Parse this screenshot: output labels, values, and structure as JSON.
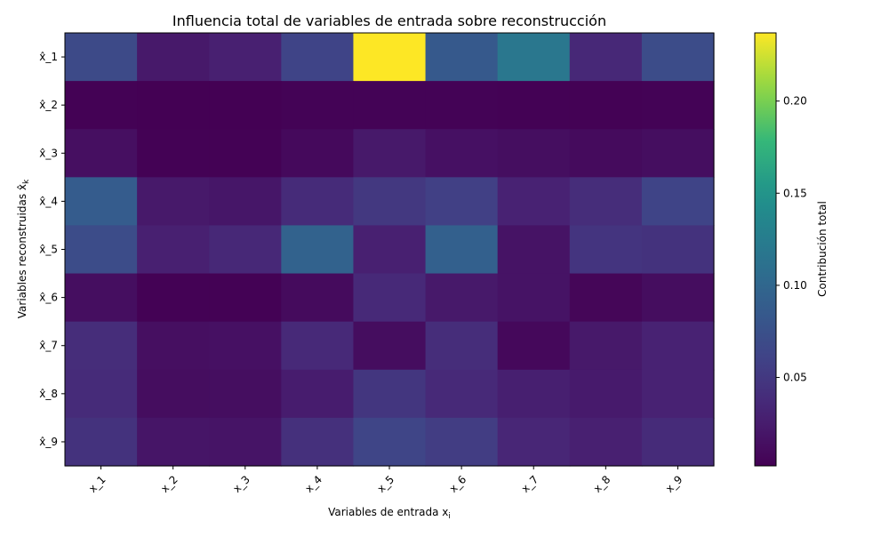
{
  "chart_data": {
    "type": "heatmap",
    "title": "Influencia total de variables de entrada sobre reconstrucción",
    "xlabel_main": "Variables de entrada x",
    "xlabel_sub": "i",
    "ylabel_main": "Variables reconstruidas x̂",
    "ylabel_sub": "k",
    "x_categories": [
      "x_1",
      "x_2",
      "x_3",
      "x_4",
      "x_5",
      "x_6",
      "x_7",
      "x_8",
      "x_9"
    ],
    "y_categories": [
      "x̂_1",
      "x̂_2",
      "x̂_3",
      "x̂_4",
      "x̂_5",
      "x̂_6",
      "x̂_7",
      "x̂_8",
      "x̂_9"
    ],
    "values": [
      [
        0.068,
        0.022,
        0.028,
        0.062,
        0.237,
        0.085,
        0.118,
        0.035,
        0.07
      ],
      [
        0.003,
        0.002,
        0.002,
        0.004,
        0.004,
        0.004,
        0.003,
        0.003,
        0.004
      ],
      [
        0.014,
        0.003,
        0.003,
        0.009,
        0.022,
        0.015,
        0.013,
        0.01,
        0.013
      ],
      [
        0.088,
        0.022,
        0.02,
        0.038,
        0.05,
        0.058,
        0.03,
        0.04,
        0.062
      ],
      [
        0.07,
        0.028,
        0.035,
        0.095,
        0.028,
        0.092,
        0.017,
        0.047,
        0.045
      ],
      [
        0.013,
        0.003,
        0.003,
        0.01,
        0.036,
        0.022,
        0.017,
        0.006,
        0.012
      ],
      [
        0.04,
        0.014,
        0.015,
        0.036,
        0.012,
        0.04,
        0.008,
        0.022,
        0.03
      ],
      [
        0.038,
        0.012,
        0.013,
        0.025,
        0.048,
        0.036,
        0.027,
        0.023,
        0.03
      ],
      [
        0.045,
        0.019,
        0.018,
        0.043,
        0.063,
        0.055,
        0.033,
        0.028,
        0.038
      ]
    ],
    "colormap": "viridis",
    "vmin": 0.002,
    "vmax": 0.237,
    "colorbar": {
      "label": "Contribución total",
      "ticks": [
        0.05,
        0.1,
        0.15,
        0.2
      ],
      "tick_labels": [
        "0.05",
        "0.10",
        "0.15",
        "0.20"
      ]
    },
    "grid": false,
    "legend": "none"
  }
}
